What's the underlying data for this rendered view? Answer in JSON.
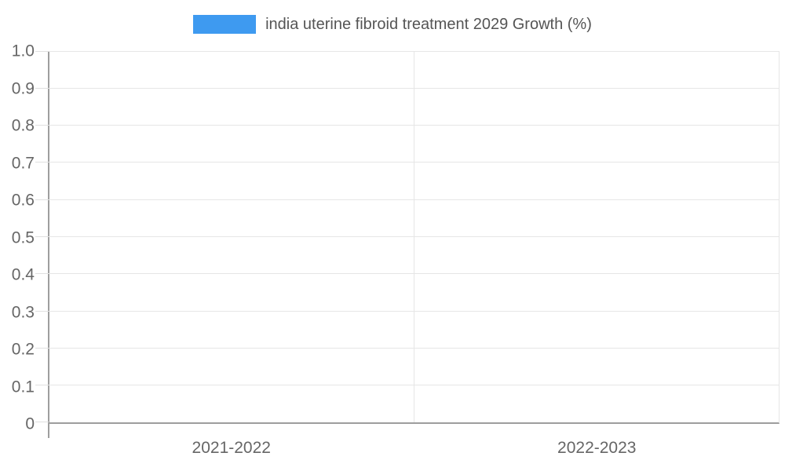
{
  "legend": {
    "label": "india uterine fibroid treatment 2029 Growth (%)",
    "swatch_color": "#3E9AF0"
  },
  "chart_data": {
    "type": "bar",
    "title": "india uterine fibroid treatment 2029 Growth (%)",
    "categories": [
      "2021-2022",
      "2022-2023"
    ],
    "series": [
      {
        "name": "india uterine fibroid treatment 2029 Growth (%)",
        "values": [
          0,
          0
        ]
      }
    ],
    "xlabel": "",
    "ylabel": "",
    "ylim": [
      0,
      1.0
    ],
    "yticks": [
      "1.0",
      "0.9",
      "0.8",
      "0.7",
      "0.6",
      "0.5",
      "0.4",
      "0.3",
      "0.2",
      "0.1",
      "0"
    ],
    "grid": true,
    "legend_position": "top"
  },
  "colors": {
    "series": "#3E9AF0",
    "grid": "#e6e6e6",
    "axis": "#9e9e9e",
    "tick_text": "#666666",
    "title_text": "#555555"
  }
}
